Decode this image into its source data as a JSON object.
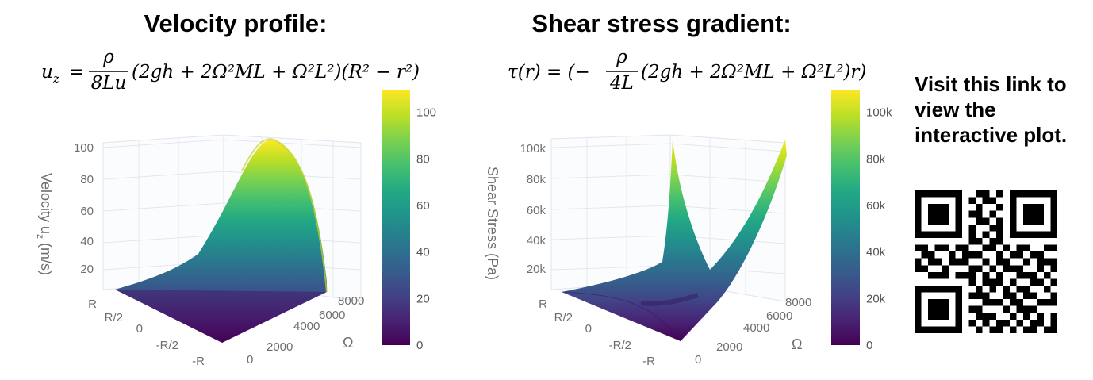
{
  "colors": {
    "viridis": [
      "#440154",
      "#482475",
      "#414487",
      "#355f8d",
      "#2a788e",
      "#21918c",
      "#22a884",
      "#44bf70",
      "#7ad151",
      "#bddf26",
      "#fde725"
    ]
  },
  "panels": [
    {
      "title": "Velocity profile:",
      "equation": {
        "lhs": "u",
        "lhs_sub": "z",
        "frac_num": "ρ",
        "frac_den": "8Lu",
        "body": "(2gh + 2Ω²ML + Ω²L²)(R² − r²)"
      }
    },
    {
      "title": "Shear stress gradient:",
      "equation": {
        "lhs": "τ(r) = (−",
        "frac_num": "ρ",
        "frac_den": "4L",
        "body": "(2gh + 2Ω²ML + Ω²L²)r)"
      }
    }
  ],
  "chart_data": [
    {
      "type": "surface",
      "x_label": "Ω",
      "x_ticks": [
        "0",
        "2000",
        "4000",
        "6000",
        "8000"
      ],
      "r_ticks": [
        "-R",
        "-R/2",
        "0",
        "R/2",
        "R"
      ],
      "z_label": "Velocity u",
      "z_label_sub": "z",
      "z_label_unit": " (m/s)",
      "z_ticks": [
        "20",
        "40",
        "60",
        "80",
        "100"
      ],
      "colorbar_ticks": [
        "0",
        "20",
        "40",
        "60",
        "80",
        "100"
      ],
      "z_range": [
        0,
        104
      ]
    },
    {
      "type": "surface",
      "x_label": "Ω",
      "x_ticks": [
        "0",
        "2000",
        "4000",
        "6000",
        "8000"
      ],
      "r_ticks": [
        "-R",
        "-R/2",
        "0",
        "R/2",
        "R"
      ],
      "z_label": "Shear Stress (Pa)",
      "z_ticks": [
        "20k",
        "40k",
        "60k",
        "80k",
        "100k"
      ],
      "colorbar_ticks": [
        "0",
        "20k",
        "40k",
        "60k",
        "80k",
        "100k"
      ],
      "z_range": [
        0,
        104000
      ]
    }
  ],
  "link_text": "Visit this link to view the interactive plot.",
  "qr": {
    "size": 21,
    "rows": [
      "111111100110101111111",
      "100000101011001000001",
      "101110100100101011101",
      "101110101101001011101",
      "101110100110101011101",
      "100000101001101000001",
      "111111101010101111111",
      "000000001101100000000",
      "110110110011010110011",
      "011001011100101101100",
      "101101110010110010111",
      "110010001101011100101",
      "001110111010100111010",
      "000000001011101001101",
      "111111100101010110010",
      "100000101110011011001",
      "101110100011101100111",
      "101110101100010111000",
      "101110100111001010101",
      "100000101010110101101",
      "111111100101101011011"
    ]
  }
}
